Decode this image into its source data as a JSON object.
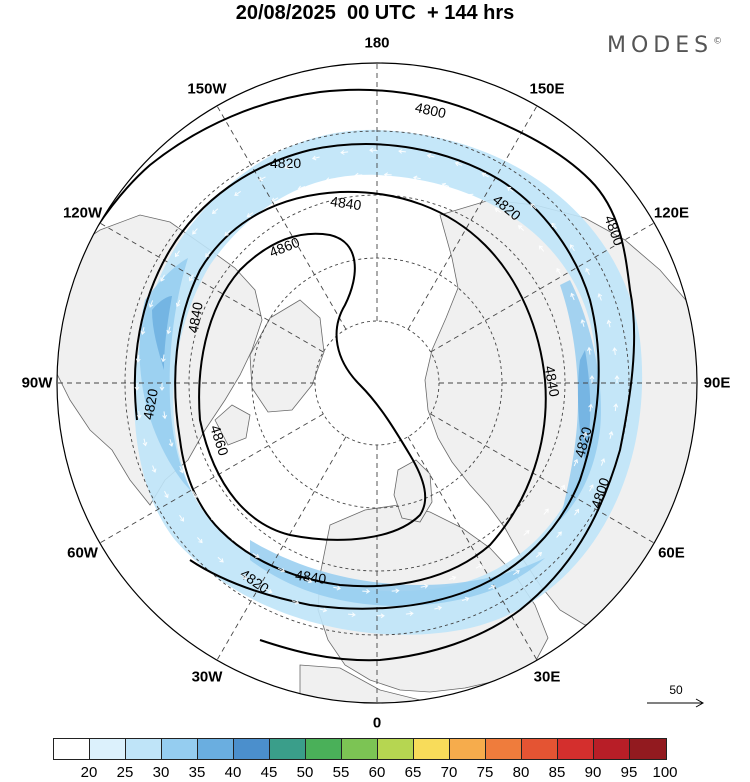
{
  "title": "20/08/2025  00 UTC  + 144 hrs",
  "brand": {
    "name": "MODES",
    "mark": "©"
  },
  "longitude_labels": [
    {
      "text": "180",
      "lon": 180
    },
    {
      "text": "150E",
      "lon": 150
    },
    {
      "text": "120E",
      "lon": 120
    },
    {
      "text": "90E",
      "lon": 90
    },
    {
      "text": "60E",
      "lon": 60
    },
    {
      "text": "30E",
      "lon": 30
    },
    {
      "text": "0",
      "lon": 0
    },
    {
      "text": "30W",
      "lon": -30
    },
    {
      "text": "60W",
      "lon": -60
    },
    {
      "text": "90W",
      "lon": -90
    },
    {
      "text": "120W",
      "lon": -120
    },
    {
      "text": "150W",
      "lon": -150
    }
  ],
  "contours": [
    {
      "value": 4800,
      "label": "4800"
    },
    {
      "value": 4820,
      "label": "4820"
    },
    {
      "value": 4840,
      "label": "4840"
    },
    {
      "value": 4860,
      "label": "4860"
    }
  ],
  "wind_reference": {
    "label": "50"
  },
  "colorbar": {
    "ticks": [
      "20",
      "25",
      "30",
      "35",
      "40",
      "45",
      "50",
      "55",
      "60",
      "65",
      "70",
      "75",
      "80",
      "85",
      "90",
      "95",
      "100"
    ],
    "colors": [
      "#ffffff",
      "#dcf1fc",
      "#bfe4f8",
      "#95cdf0",
      "#6aaee0",
      "#4b8fcc",
      "#3a9e8a",
      "#4ab059",
      "#7cc454",
      "#b6d651",
      "#f8dc5a",
      "#f6ac4c",
      "#ef7c3c",
      "#e45433",
      "#d42f2d",
      "#b81e27",
      "#921a1f"
    ]
  },
  "colors": {
    "land": "#f0f0f0",
    "coast": "#6a6a6a",
    "contour": "#000000",
    "grid": "#444444",
    "jet_light": "#bfe4f8",
    "jet_medium": "#95cdf0",
    "jet_strong": "#6aaee0"
  }
}
